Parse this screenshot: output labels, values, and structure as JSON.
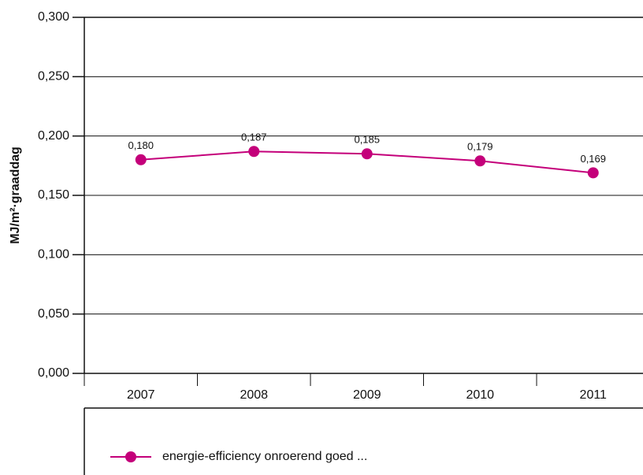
{
  "chart_data": {
    "type": "line",
    "ylabel": "MJ/m²·graaddag",
    "categories": [
      "2007",
      "2008",
      "2009",
      "2010",
      "2011"
    ],
    "series": [
      {
        "name": "energie-efficiency onroerend goed ...",
        "color": "#c4007a",
        "values": [
          0.18,
          0.187,
          0.185,
          0.179,
          0.169
        ],
        "value_labels": [
          "0,180",
          "0,187",
          "0,185",
          "0,179",
          "0,169"
        ]
      }
    ],
    "ylim": [
      0,
      0.3
    ],
    "yticks": [
      {
        "value": 0,
        "label": "0,000"
      },
      {
        "value": 0.05,
        "label": "0,050"
      },
      {
        "value": 0.1,
        "label": "0,100"
      },
      {
        "value": 0.15,
        "label": "0,150"
      },
      {
        "value": 0.2,
        "label": "0,200"
      },
      {
        "value": 0.25,
        "label": "0,250"
      },
      {
        "value": 0.3,
        "label": "0,300"
      }
    ],
    "grid": true,
    "legend": "bottom"
  }
}
